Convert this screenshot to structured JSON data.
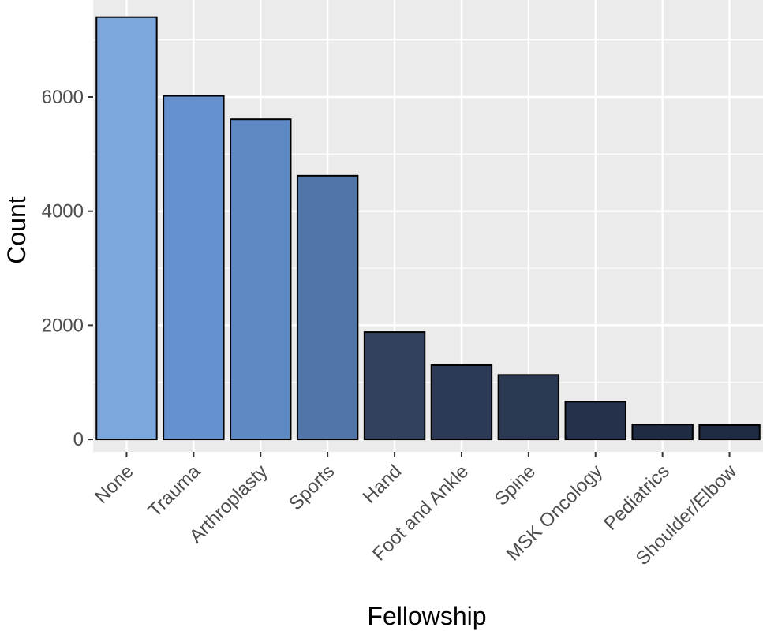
{
  "chart_data": {
    "type": "bar",
    "title": "",
    "xlabel": "Fellowship",
    "ylabel": "Count",
    "categories": [
      "None",
      "Trauma",
      "Arthroplasty",
      "Sports",
      "Hand",
      "Foot and Ankle",
      "Spine",
      "MSK Oncology",
      "Pediatrics",
      "Shoulder/Elbow"
    ],
    "values": [
      7400,
      6020,
      5610,
      4620,
      1880,
      1300,
      1130,
      660,
      260,
      250
    ],
    "bar_colors": [
      "#7ba7dc",
      "#6592cf",
      "#5e89c2",
      "#5175a7",
      "#32425e",
      "#2c3a55",
      "#2a3852",
      "#25314a",
      "#1f2b42",
      "#1f2b42"
    ],
    "yticks": [
      0,
      2000,
      4000,
      6000
    ],
    "ylim": [
      -220,
      7700
    ],
    "grid": true,
    "legend": "none",
    "background": "#ebebeb",
    "gridline_color": "#ffffff"
  }
}
